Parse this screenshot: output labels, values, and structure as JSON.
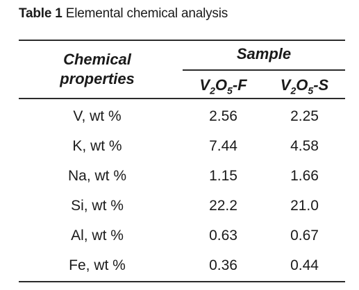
{
  "caption": {
    "label": "Table 1",
    "text": "Elemental chemical analysis"
  },
  "header": {
    "properties_line1": "Chemical",
    "properties_line2": "properties",
    "sample": "Sample",
    "columns": [
      {
        "base": "V",
        "sub1": "2",
        "mid": "O",
        "sub2": "5",
        "suffix": "-F"
      },
      {
        "base": "V",
        "sub1": "2",
        "mid": "O",
        "sub2": "5",
        "suffix": "-S"
      }
    ]
  },
  "rows": [
    {
      "property": "V, wt %",
      "f": "2.56",
      "s": "2.25"
    },
    {
      "property": "K, wt %",
      "f": "7.44",
      "s": "4.58"
    },
    {
      "property": "Na, wt %",
      "f": "1.15",
      "s": "1.66"
    },
    {
      "property": "Si, wt %",
      "f": "22.2",
      "s": "21.0"
    },
    {
      "property": "Al, wt %",
      "f": "0.63",
      "s": "0.67"
    },
    {
      "property": "Fe, wt %",
      "f": "0.36",
      "s": "0.44"
    }
  ]
}
